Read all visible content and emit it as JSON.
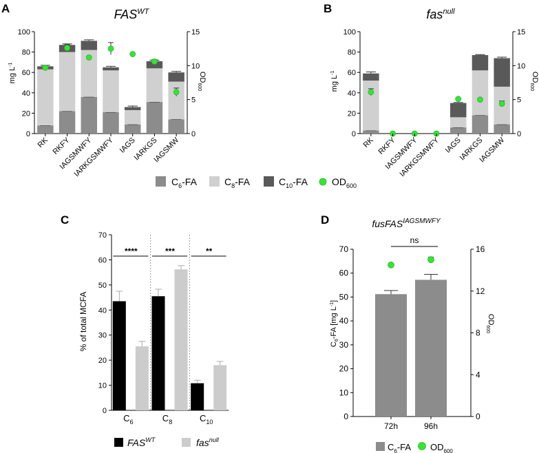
{
  "colors": {
    "c6": "#8c8c8c",
    "c8": "#d0d0d0",
    "c10": "#595959",
    "od": "#33e633",
    "fas_wt": "#000000",
    "fas_null": "#cccccc",
    "axis": "#000000",
    "dashed": "#999999"
  },
  "panels": {
    "A": {
      "letter": "A",
      "title_main": "FAS",
      "title_sup": "WT",
      "ylabel_left": "mg L",
      "ylabel_left_sup": "-1",
      "ylabel_right": "OD",
      "ylabel_right_sub": "600"
    },
    "B": {
      "letter": "B",
      "title_main": "fas",
      "title_sup": "null",
      "ylabel_left": "mg L",
      "ylabel_left_sup": "-1",
      "ylabel_right": "OD",
      "ylabel_right_sub": "600"
    },
    "C": {
      "letter": "C",
      "ylabel": "% of total MCFA"
    },
    "D": {
      "letter": "D",
      "title_main": "fusFAS",
      "title_sup": "IAGSMWFY",
      "ylabel_left": "C",
      "ylabel_left_sub": "6",
      "ylabel_left_rest": "-FA [mg L",
      "ylabel_left_sup": "-1",
      "ylabel_left_end": "]",
      "ylabel_right": "OD",
      "ylabel_right_sub": "600"
    }
  },
  "legend_ab": {
    "c6": {
      "main": "C",
      "sub": "6",
      "rest": "-FA"
    },
    "c8": {
      "main": "C",
      "sub": "8",
      "rest": "-FA"
    },
    "c10": {
      "main": "C",
      "sub": "10",
      "rest": "-FA"
    },
    "od": {
      "main": "OD",
      "sub": "600"
    }
  },
  "legend_c": {
    "wt": {
      "main": "FAS",
      "sup": "WT"
    },
    "null": {
      "main": "fas",
      "sup": "null"
    }
  },
  "legend_d": {
    "c6": {
      "main": "C",
      "sub": "6",
      "rest": "-FA"
    },
    "od": {
      "main": "OD",
      "sub": "600"
    }
  },
  "chart_data": [
    {
      "panel": "A",
      "type": "bar",
      "stacked": true,
      "categories": [
        "RK",
        "RKFY",
        "IAGSMWFY",
        "IARKGSMWFY",
        "IAGS",
        "IARKGS",
        "IAGSMW"
      ],
      "ylim": [
        0,
        100
      ],
      "yticks": [
        0,
        20,
        40,
        60,
        80,
        100
      ],
      "y2lim": [
        0,
        15
      ],
      "y2ticks": [
        0,
        5,
        10,
        15
      ],
      "series": [
        {
          "name": "C6-FA",
          "values": [
            8,
            22,
            36,
            21,
            9,
            31,
            14
          ]
        },
        {
          "name": "C8-FA",
          "values": [
            55,
            58,
            46,
            41,
            14,
            33,
            37
          ]
        },
        {
          "name": "C10-FA",
          "values": [
            3,
            7,
            9,
            3,
            3,
            7,
            9
          ]
        }
      ],
      "totals_err": [
        1,
        1,
        1,
        1,
        1,
        1,
        1
      ],
      "od600": [
        9.7,
        12.6,
        11.2,
        12.5,
        11.7,
        10.6,
        6.1
      ],
      "od600_err": [
        0.3,
        0.5,
        0.2,
        0.9,
        0.2,
        0.3,
        0.6
      ]
    },
    {
      "panel": "B",
      "type": "bar",
      "stacked": true,
      "categories": [
        "RK",
        "RKFY",
        "IAGSMWFY",
        "IARKGSMWFY",
        "IAGS",
        "IARKGS",
        "IAGSMW"
      ],
      "ylim": [
        0,
        100
      ],
      "yticks": [
        0,
        20,
        40,
        60,
        80,
        100
      ],
      "y2lim": [
        0,
        15
      ],
      "y2ticks": [
        0,
        5,
        10,
        15
      ],
      "series": [
        {
          "name": "C6-FA",
          "values": [
            3,
            0,
            0,
            0,
            6,
            18,
            9
          ]
        },
        {
          "name": "C8-FA",
          "values": [
            49,
            0,
            0,
            0,
            10,
            44,
            37
          ]
        },
        {
          "name": "C10-FA",
          "values": [
            7,
            0,
            0,
            0,
            14,
            15,
            28
          ]
        }
      ],
      "totals_err": [
        1.5,
        0,
        0,
        0,
        0.5,
        0.5,
        1
      ],
      "od600": [
        6.1,
        0,
        0,
        0,
        5.1,
        5.0,
        4.4
      ],
      "od600_err": [
        0.5,
        0,
        0,
        0,
        0.1,
        0.1,
        0.4
      ]
    },
    {
      "panel": "C",
      "type": "bar",
      "categories": [
        "C6",
        "C8",
        "C10"
      ],
      "category_labels": [
        {
          "main": "C",
          "sub": "6"
        },
        {
          "main": "C",
          "sub": "8"
        },
        {
          "main": "C",
          "sub": "10"
        }
      ],
      "ylim": [
        0,
        70
      ],
      "yticks": [
        0,
        10,
        20,
        30,
        40,
        50,
        60,
        70
      ],
      "series": [
        {
          "name": "FAS WT",
          "values": [
            43.5,
            45.5,
            10.8
          ],
          "errors": [
            4,
            2.8,
            1.2
          ]
        },
        {
          "name": "fas null",
          "values": [
            25.5,
            56.2,
            18
          ],
          "errors": [
            2,
            1.5,
            1.5
          ]
        }
      ],
      "significance": [
        "****",
        "***",
        "**"
      ]
    },
    {
      "panel": "D",
      "type": "bar",
      "categories": [
        "72h",
        "96h"
      ],
      "ylim": [
        0,
        70
      ],
      "yticks": [
        0,
        10,
        20,
        30,
        40,
        50,
        60,
        70
      ],
      "y2lim": [
        0,
        16
      ],
      "y2ticks": [
        0,
        4,
        8,
        12,
        16
      ],
      "series": [
        {
          "name": "C6-FA",
          "values": [
            51.2,
            57.2
          ],
          "errors": [
            1.5,
            2.3
          ]
        }
      ],
      "od600": [
        14.5,
        15.0
      ],
      "od600_err": [
        0.1,
        0.25
      ],
      "significance": "ns"
    }
  ]
}
